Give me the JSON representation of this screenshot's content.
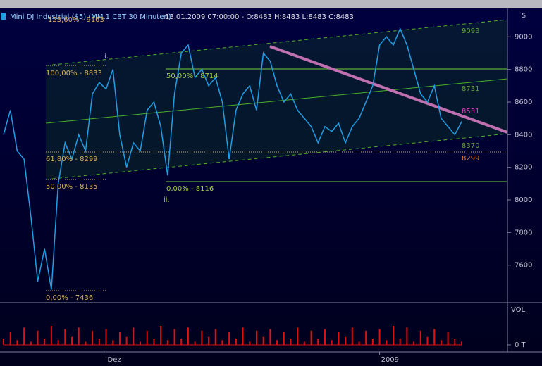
{
  "chart_data": [
    {
      "type": "line",
      "title": "Mini DJ Industrial ($5) (MM.1 CBT 30 Minuten)",
      "subtitle": "13.01.2009 07:00:00 - O:8483 H:8483 L:8483 C:8483",
      "y_label": "$",
      "categories": [
        null,
        null,
        null,
        null,
        null,
        null,
        null,
        null,
        null,
        null,
        null,
        null,
        null,
        null,
        null,
        "Dez",
        null,
        null,
        null,
        null,
        null,
        null,
        null,
        null,
        null,
        null,
        null,
        null,
        null,
        null,
        null,
        null,
        null,
        null,
        null,
        null,
        null,
        null,
        null,
        null,
        null,
        null,
        null,
        null,
        null,
        null,
        null,
        null,
        null,
        null,
        null,
        null,
        null,
        null,
        null,
        "2009",
        null,
        null,
        null,
        null,
        null,
        null,
        null,
        null,
        null,
        null,
        null,
        null
      ],
      "series": [
        {
          "name": "Mini DJ Industrial",
          "color": "#1e9fe6",
          "values": [
            8400,
            8550,
            8300,
            8250,
            7900,
            7500,
            7700,
            7450,
            8100,
            8350,
            8250,
            8400,
            8300,
            8650,
            8720,
            8680,
            8800,
            8400,
            8200,
            8350,
            8300,
            8550,
            8600,
            8450,
            8150,
            8650,
            8900,
            8950,
            8750,
            8800,
            8700,
            8750,
            8600,
            8250,
            8550,
            8650,
            8700,
            8550,
            8900,
            8850,
            8700,
            8600,
            8650,
            8550,
            8500,
            8450,
            8350,
            8450,
            8420,
            8470,
            8350,
            8450,
            8500,
            8600,
            8700,
            8950,
            9000,
            8950,
            9050,
            8950,
            8800,
            8650,
            8600,
            8700,
            8500,
            8450,
            8400,
            8480
          ]
        }
      ],
      "ylim": [
        7370,
        9174
      ],
      "yticks": [
        7600,
        7800,
        8000,
        8200,
        8400,
        8600,
        8800,
        9000
      ],
      "annotations": [
        "123,60% - 9163",
        "100,00% - 8833",
        "61,80% - 8299",
        "50,00% - 8135",
        "0,00% - 7436",
        "50,00% - 8714",
        "0,00% - 8116",
        "i.",
        "ii.",
        "9093",
        "8731",
        "8531",
        "8370",
        "8299"
      ],
      "grid": false
    },
    {
      "type": "bar",
      "title": "VOL",
      "color": "#e01010",
      "values": [
        20,
        40,
        15,
        55,
        10,
        45,
        20,
        60,
        15,
        50,
        25,
        55,
        10,
        45,
        20,
        50,
        15,
        40,
        25,
        55,
        10,
        45,
        20,
        60,
        15,
        50,
        20,
        55,
        10,
        45,
        25,
        50,
        15,
        40,
        20,
        55,
        10,
        45,
        25,
        50,
        15,
        40,
        20,
        55,
        10,
        45,
        20,
        50,
        15,
        40,
        25,
        55,
        10,
        45,
        20,
        50,
        15,
        60,
        20,
        55,
        10,
        45,
        25,
        50,
        15,
        40,
        20,
        10
      ],
      "ylim": [
        0,
        100
      ],
      "yticks": [
        {
          "value": 0,
          "label": "0 T"
        }
      ]
    }
  ]
}
